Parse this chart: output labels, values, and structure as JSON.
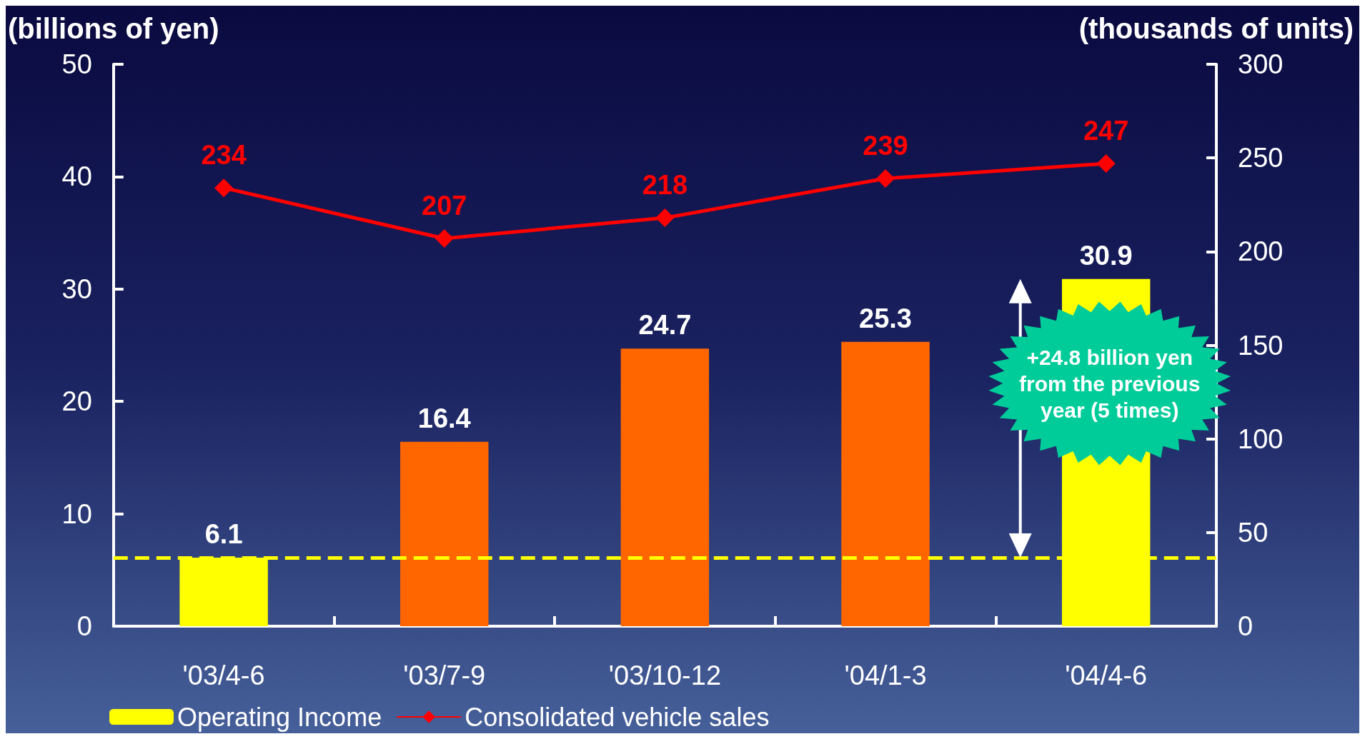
{
  "chart_data": {
    "type": "bar",
    "ylabel": "(billions of yen)",
    "y2label": "(thousands of units)",
    "categories": [
      "'03/4-6",
      "'03/7-9",
      "'03/10-12",
      "'04/1-3",
      "'04/4-6"
    ],
    "series": [
      {
        "name": "Operating Income",
        "color": "#ffff00",
        "colors": [
          "#ffff00",
          "#ff6600",
          "#ff6600",
          "#ff6600",
          "#ffff00"
        ],
        "values": [
          6.1,
          16.4,
          24.7,
          25.3,
          30.9
        ]
      },
      {
        "name": "Consolidated vehicle sales",
        "type": "line",
        "axis": "y2",
        "color": "#ff0000",
        "values": [
          234,
          207,
          218,
          239,
          247
        ]
      }
    ],
    "ylim": [
      0,
      50
    ],
    "yticks": [
      0,
      10,
      20,
      30,
      40,
      50
    ],
    "y2lim": [
      0,
      300
    ],
    "y2ticks": [
      0,
      50,
      100,
      150,
      200,
      250,
      300
    ],
    "ref_lines": [
      {
        "axis": "y",
        "value": 6.1,
        "color": "#ffff00",
        "line_style": "dashed"
      }
    ],
    "annotations": [
      "+24.8 billion yen from the previous year (5 times)"
    ],
    "data_labels": true,
    "marker": "diamond",
    "grid": false,
    "legend": "bottom left"
  }
}
